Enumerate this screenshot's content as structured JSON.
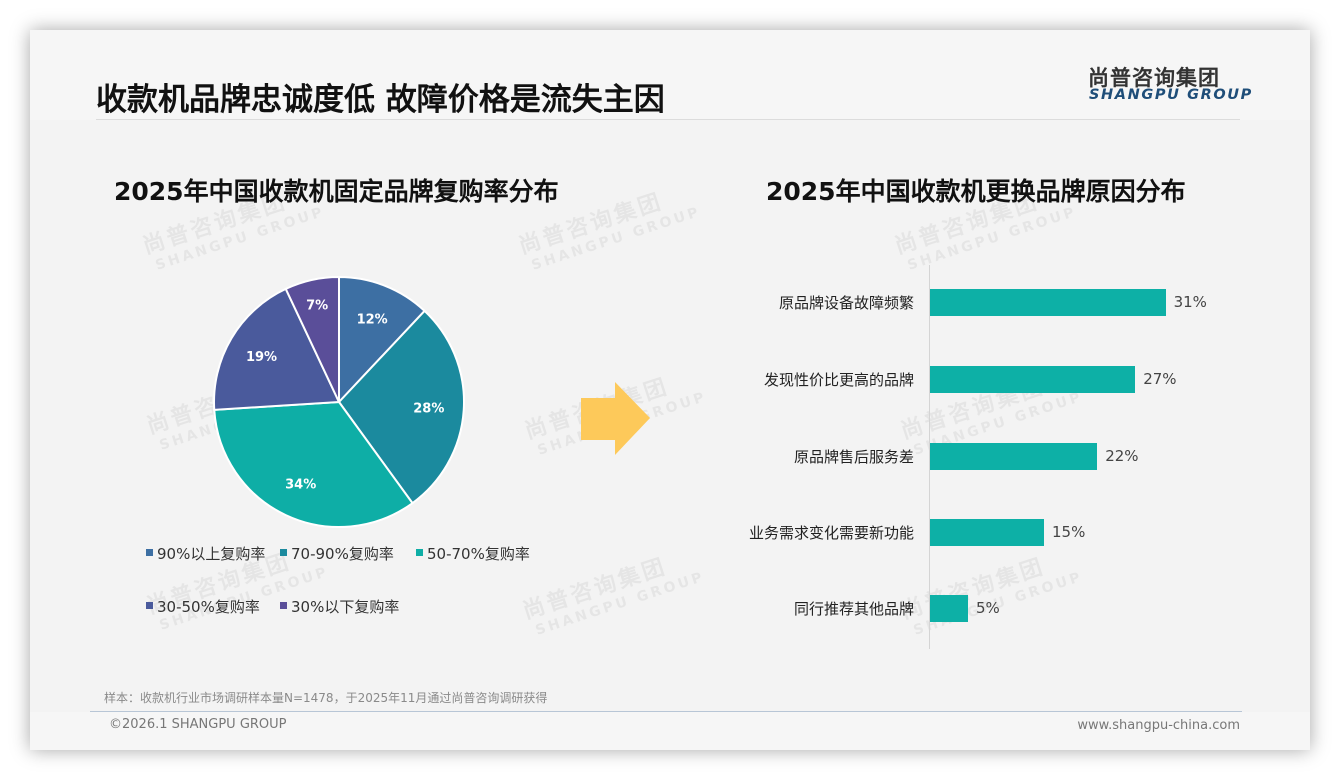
{
  "header": {
    "title": "收款机品牌忠诚度低 故障价格是流失主因",
    "logo_cn": "尚普咨询集团",
    "logo_en": "SHANGPU GROUP"
  },
  "watermark": {
    "cn": "尚普咨询集团",
    "en": "SHANGPU GROUP"
  },
  "colors": {
    "pie": [
      "#3d6fa3",
      "#1b8a9e",
      "#0eaea6",
      "#4a5a9c",
      "#5a4e99"
    ],
    "bar": "#0db0a6",
    "arrow": "#fdc95a",
    "logo_en": "#1f4e79"
  },
  "chart_data": [
    {
      "type": "pie",
      "title": "2025年中国收款机固定品牌复购率分布",
      "categories": [
        "90%以上复购率",
        "70-90%复购率",
        "50-70%复购率",
        "30-50%复购率",
        "30%以下复购率"
      ],
      "values": [
        12,
        28,
        34,
        19,
        7
      ],
      "labels": [
        "12%",
        "28%",
        "34%",
        "19%",
        "7%"
      ],
      "legend_position": "bottom"
    },
    {
      "type": "bar",
      "orientation": "horizontal",
      "title": "2025年中国收款机更换品牌原因分布",
      "categories": [
        "原品牌设备故障频繁",
        "发现性价比更高的品牌",
        "原品牌售后服务差",
        "业务需求变化需要新功能",
        "同行推荐其他品牌"
      ],
      "values": [
        31,
        27,
        22,
        15,
        5
      ],
      "labels": [
        "31%",
        "27%",
        "22%",
        "15%",
        "5%"
      ],
      "unit": "%",
      "grid": false
    }
  ],
  "footer": {
    "note": "样本：收款机行业市场调研样本量N=1478，于2025年11月通过尚普咨询调研获得",
    "copyright": "©2026.1 SHANGPU GROUP",
    "website": "www.shangpu-china.com"
  }
}
